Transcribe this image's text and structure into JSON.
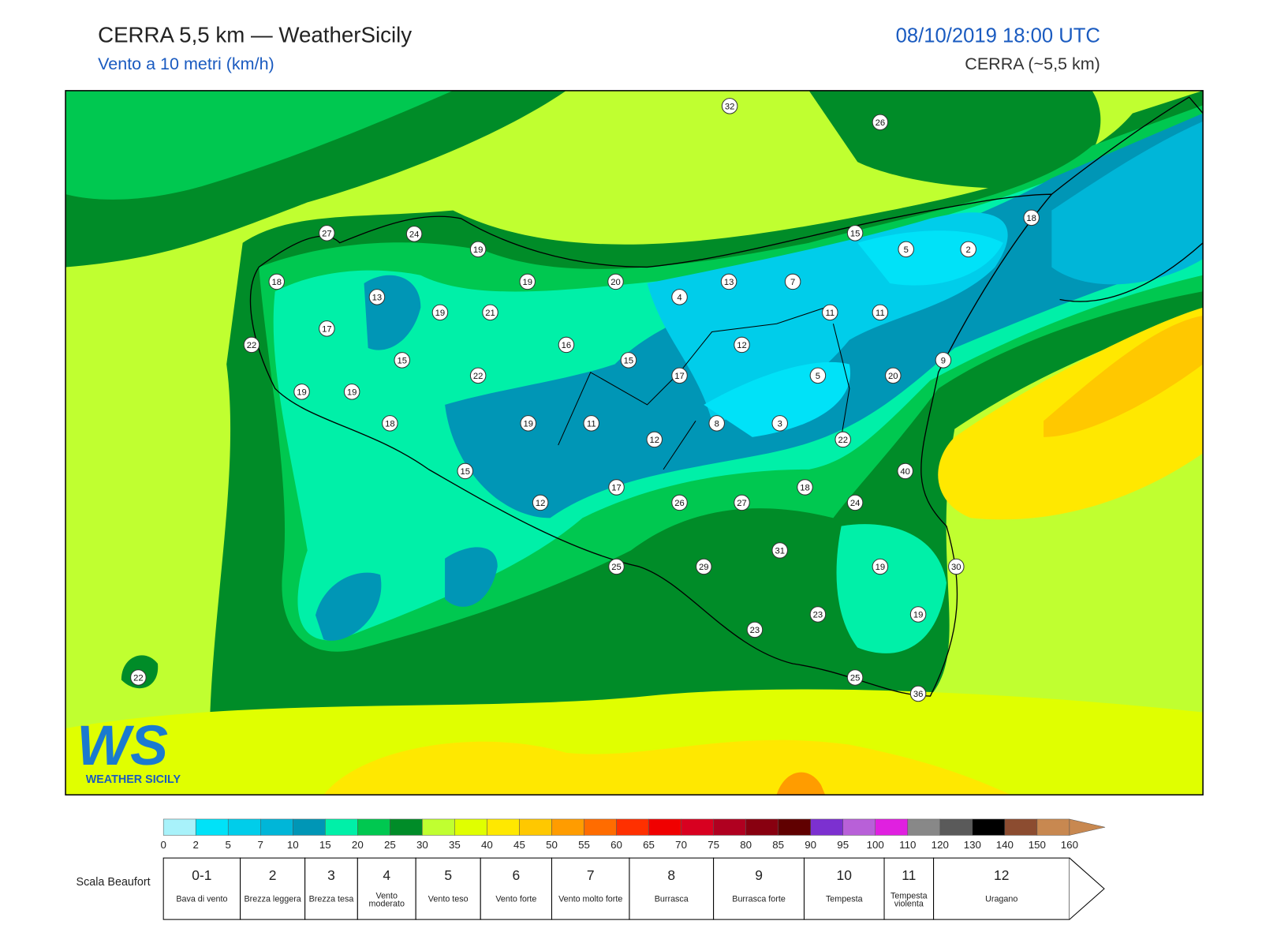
{
  "header": {
    "title": "CERRA 5,5 km — WeatherSicily",
    "subtitle": "Vento a 10 metri (km/h)",
    "datetime": "08/10/2019 18:00 UTC",
    "model": "CERRA (~5,5 km)"
  },
  "map": {
    "stations": [
      32,
      26,
      27,
      24,
      19,
      15,
      18,
      5,
      2,
      18,
      19,
      20,
      13,
      7,
      13,
      4,
      19,
      21,
      11,
      11,
      17,
      22,
      16,
      12,
      15,
      15,
      9,
      22,
      17,
      5,
      20,
      19,
      19,
      18,
      19,
      11,
      8,
      3,
      12,
      22,
      40,
      15,
      17,
      18,
      12,
      26,
      27,
      24,
      31,
      25,
      29,
      19,
      30,
      23,
      19,
      23,
      22,
      25,
      36
    ]
  },
  "logo": {
    "mark": "WS",
    "name": "WEATHER SICILY"
  },
  "colorbar": {
    "ticks": [
      0,
      2,
      5,
      7,
      10,
      15,
      20,
      25,
      30,
      35,
      40,
      45,
      50,
      55,
      60,
      65,
      70,
      75,
      80,
      85,
      90,
      95,
      100,
      110,
      120,
      130,
      140,
      150,
      160
    ],
    "colors": [
      "#a8f2fa",
      "#00e2f8",
      "#00cdea",
      "#00b6d8",
      "#0096b6",
      "#00f0a8",
      "#00c850",
      "#008c28",
      "#c0ff30",
      "#e0ff00",
      "#ffe800",
      "#ffc800",
      "#ff9c00",
      "#ff6c00",
      "#ff3000",
      "#f00000",
      "#d80020",
      "#b00020",
      "#880010",
      "#600000",
      "#7c30d0",
      "#b860d8",
      "#e020e0",
      "#888888",
      "#5a5a5a",
      "#000000",
      "#8c4c30",
      "#c88850"
    ]
  },
  "beaufort": {
    "title": "Scala Beaufort",
    "levels": [
      {
        "force": "0-1",
        "name": "Bava di vento"
      },
      {
        "force": "2",
        "name": "Brezza leggera"
      },
      {
        "force": "3",
        "name": "Brezza tesa"
      },
      {
        "force": "4",
        "name": "Vento moderato"
      },
      {
        "force": "5",
        "name": "Vento teso"
      },
      {
        "force": "6",
        "name": "Vento forte"
      },
      {
        "force": "7",
        "name": "Vento molto forte"
      },
      {
        "force": "8",
        "name": "Burrasca"
      },
      {
        "force": "9",
        "name": "Burrasca forte"
      },
      {
        "force": "10",
        "name": "Tempesta"
      },
      {
        "force": "11",
        "name": "Tempesta violenta"
      },
      {
        "force": "12",
        "name": "Uragano"
      }
    ]
  }
}
